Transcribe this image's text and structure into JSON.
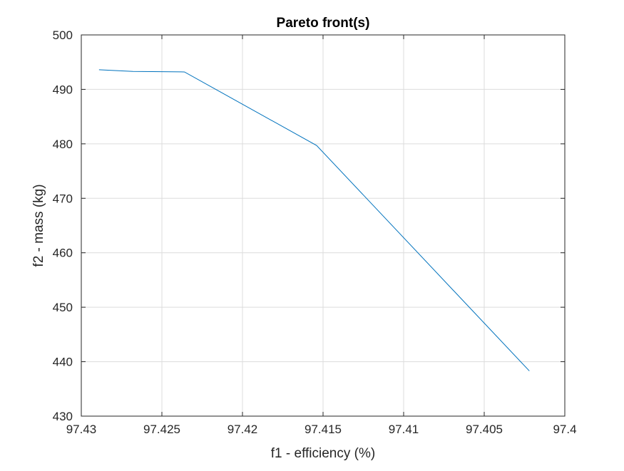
{
  "chart_data": {
    "type": "line",
    "title": "Pareto front(s)",
    "xlabel": "f1 - efficiency (%)",
    "ylabel": "f2 - mass (kg)",
    "x_reversed": true,
    "xlim": [
      97.4,
      97.43
    ],
    "ylim": [
      430,
      500
    ],
    "xticks": [
      97.43,
      97.425,
      97.42,
      97.415,
      97.41,
      97.405,
      97.4
    ],
    "xtick_labels": [
      "97.43",
      "97.425",
      "97.42",
      "97.415",
      "97.41",
      "97.405",
      "97.4"
    ],
    "yticks": [
      430,
      440,
      450,
      460,
      470,
      480,
      490,
      500
    ],
    "ytick_labels": [
      "430",
      "440",
      "450",
      "460",
      "470",
      "480",
      "490",
      "500"
    ],
    "grid": true,
    "series": [
      {
        "color": "#0072BD",
        "x": [
          97.4289,
          97.4268,
          97.4236,
          97.4154,
          97.4022
        ],
        "y": [
          493.6,
          493.3,
          493.2,
          479.7,
          438.3
        ]
      }
    ]
  }
}
